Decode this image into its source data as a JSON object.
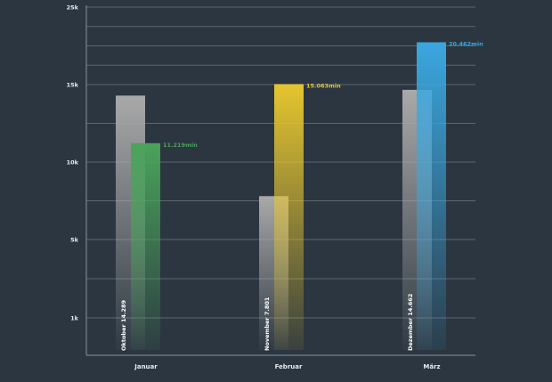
{
  "chart_data": {
    "type": "bar",
    "categories": [
      "Januar",
      "Februar",
      "März"
    ],
    "y_ticks": [
      {
        "value": 1000,
        "label": "1k"
      },
      {
        "value": 5000,
        "label": "5k"
      },
      {
        "value": 10000,
        "label": "10k"
      },
      {
        "value": 15000,
        "label": "15k"
      },
      {
        "value": 25000,
        "label": "25k"
      }
    ],
    "previous": {
      "labels": [
        "Oktober  14.289",
        "November  7.801",
        "Dezember  14.662"
      ],
      "values": [
        14289,
        7801,
        14662
      ],
      "color": "#a8a8a8"
    },
    "current": {
      "values": [
        11219,
        15063,
        20462
      ],
      "labels": [
        "11.219min",
        "15.063min",
        "20.462min"
      ],
      "colors": [
        "#4aa35b",
        "#e5c52f",
        "#3aa7df"
      ]
    }
  }
}
